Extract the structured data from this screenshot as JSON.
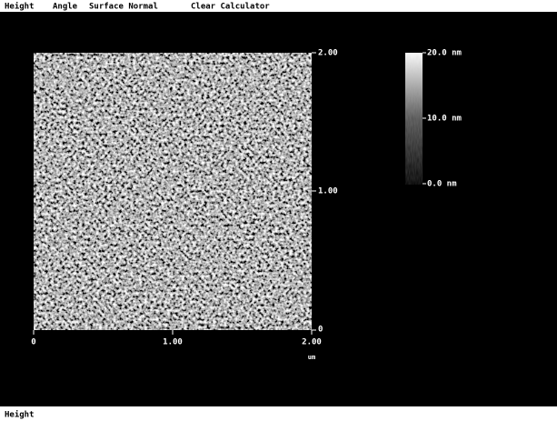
{
  "menu": {
    "items": [
      "Height",
      "Angle",
      "Surface Normal",
      "Clear Calculator"
    ]
  },
  "image": {
    "y_axis": {
      "ticks": [
        "2.00",
        "1.00",
        "0"
      ]
    },
    "x_axis": {
      "ticks": [
        "0",
        "1.00",
        "2.00"
      ],
      "unit": "um"
    },
    "color_bar": {
      "labels": [
        "20.0 nm",
        "10.0 nm",
        "0.0 nm"
      ]
    }
  },
  "status": {
    "text": "Height"
  }
}
